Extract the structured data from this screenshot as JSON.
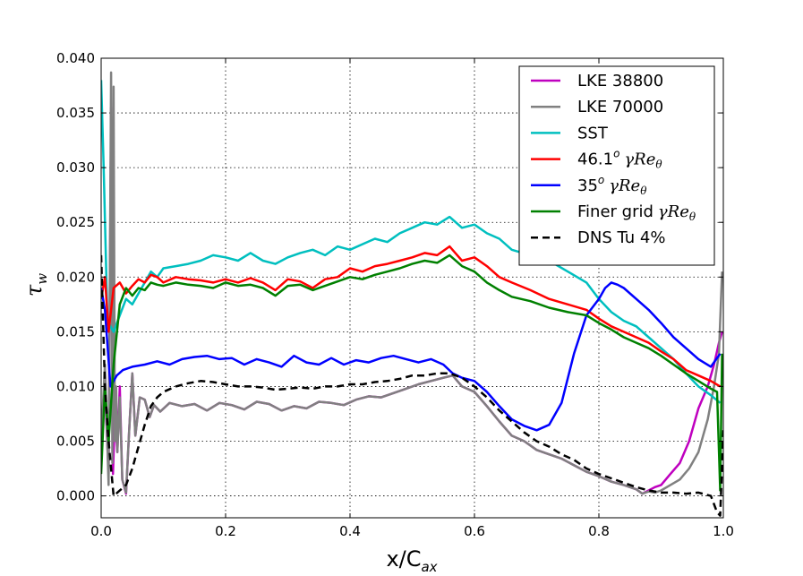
{
  "chart_data": {
    "type": "line",
    "xlabel_main": "x/C",
    "xlabel_sub": "ax",
    "ylabel_main": "τ",
    "ylabel_sub": "w",
    "xlim": [
      0.0,
      1.0
    ],
    "ylim": [
      -0.002,
      0.04
    ],
    "xticks": [
      0.0,
      0.2,
      0.4,
      0.6,
      0.8,
      1.0
    ],
    "xtick_labels": [
      "0.0",
      "0.2",
      "0.4",
      "0.6",
      "0.8",
      "1.0"
    ],
    "yticks": [
      0.0,
      0.005,
      0.01,
      0.015,
      0.02,
      0.025,
      0.03,
      0.035,
      0.04
    ],
    "ytick_labels": [
      "0.000",
      "0.005",
      "0.010",
      "0.015",
      "0.020",
      "0.025",
      "0.030",
      "0.035",
      "0.040"
    ],
    "grid": true,
    "legend_position": "top-right",
    "series": [
      {
        "name": "LKE 38800",
        "legend_main": "LKE 38800",
        "legend_sup": "",
        "legend_math": "",
        "color": "#bf00bf",
        "dash": "solid",
        "x": [
          0.0,
          0.006,
          0.012,
          0.016,
          0.019,
          0.022,
          0.026,
          0.03,
          0.034,
          0.04,
          0.045,
          0.05,
          0.055,
          0.062,
          0.07,
          0.078,
          0.085,
          0.095,
          0.11,
          0.13,
          0.15,
          0.17,
          0.19,
          0.21,
          0.23,
          0.25,
          0.27,
          0.29,
          0.31,
          0.33,
          0.35,
          0.37,
          0.39,
          0.41,
          0.43,
          0.45,
          0.47,
          0.49,
          0.51,
          0.53,
          0.55,
          0.565,
          0.58,
          0.6,
          0.62,
          0.64,
          0.66,
          0.68,
          0.7,
          0.72,
          0.74,
          0.76,
          0.78,
          0.8,
          0.82,
          0.84,
          0.86,
          0.87,
          0.88,
          0.89,
          0.9,
          0.915,
          0.93,
          0.945,
          0.96,
          0.975,
          0.985,
          0.993,
          0.998
        ],
        "y": [
          0.004,
          0.01,
          0.002,
          0.0355,
          0.002,
          0.0075,
          0.004,
          0.01,
          0.0015,
          0.0002,
          0.006,
          0.0112,
          0.0055,
          0.009,
          0.0088,
          0.0072,
          0.0083,
          0.0077,
          0.0085,
          0.0082,
          0.0084,
          0.0078,
          0.0085,
          0.0083,
          0.0079,
          0.0086,
          0.0084,
          0.0078,
          0.0082,
          0.008,
          0.0086,
          0.0085,
          0.0083,
          0.0088,
          0.0091,
          0.009,
          0.0094,
          0.0098,
          0.0102,
          0.0105,
          0.0108,
          0.011,
          0.01,
          0.0095,
          0.0082,
          0.0068,
          0.0055,
          0.005,
          0.0042,
          0.0038,
          0.0034,
          0.0028,
          0.0022,
          0.0018,
          0.0013,
          0.001,
          0.0006,
          0.0002,
          0.0005,
          0.0008,
          0.001,
          0.002,
          0.003,
          0.005,
          0.008,
          0.01,
          0.012,
          0.014,
          0.015
        ]
      },
      {
        "name": "LKE 70000",
        "legend_main": "LKE 70000",
        "legend_sup": "",
        "legend_math": "",
        "color": "#808080",
        "dash": "solid",
        "x": [
          0.0,
          0.006,
          0.012,
          0.016,
          0.018,
          0.02,
          0.022,
          0.024,
          0.026,
          0.03,
          0.034,
          0.04,
          0.045,
          0.05,
          0.055,
          0.062,
          0.07,
          0.078,
          0.085,
          0.095,
          0.11,
          0.13,
          0.15,
          0.17,
          0.19,
          0.21,
          0.23,
          0.25,
          0.27,
          0.29,
          0.31,
          0.33,
          0.35,
          0.37,
          0.39,
          0.41,
          0.43,
          0.45,
          0.47,
          0.49,
          0.51,
          0.53,
          0.55,
          0.565,
          0.58,
          0.6,
          0.62,
          0.64,
          0.66,
          0.68,
          0.7,
          0.72,
          0.74,
          0.76,
          0.78,
          0.8,
          0.82,
          0.84,
          0.86,
          0.87,
          0.88,
          0.89,
          0.9,
          0.915,
          0.93,
          0.945,
          0.96,
          0.975,
          0.985,
          0.993,
          0.998
        ],
        "y": [
          0.005,
          0.012,
          0.001,
          0.0387,
          0.003,
          0.0374,
          0.005,
          0.01,
          0.004,
          0.009,
          0.0015,
          0.0003,
          0.006,
          0.0112,
          0.0055,
          0.009,
          0.0088,
          0.0072,
          0.0083,
          0.0077,
          0.0085,
          0.0082,
          0.0084,
          0.0078,
          0.0085,
          0.0083,
          0.0079,
          0.0086,
          0.0084,
          0.0078,
          0.0082,
          0.008,
          0.0086,
          0.0085,
          0.0083,
          0.0088,
          0.0091,
          0.009,
          0.0094,
          0.0098,
          0.0102,
          0.0105,
          0.0108,
          0.011,
          0.01,
          0.0095,
          0.0082,
          0.0068,
          0.0055,
          0.005,
          0.0042,
          0.0038,
          0.0034,
          0.0028,
          0.0022,
          0.0018,
          0.0013,
          0.001,
          0.0006,
          0.0002,
          0.0004,
          0.0003,
          0.0005,
          0.001,
          0.0015,
          0.0025,
          0.004,
          0.007,
          0.01,
          0.013,
          0.0205
        ]
      },
      {
        "name": "SST",
        "legend_main": "SST",
        "legend_sup": "",
        "legend_math": "",
        "color": "#00bfbf",
        "dash": "solid",
        "x": [
          0.0,
          0.004,
          0.01,
          0.02,
          0.03,
          0.04,
          0.05,
          0.06,
          0.07,
          0.08,
          0.09,
          0.1,
          0.12,
          0.14,
          0.16,
          0.18,
          0.2,
          0.22,
          0.24,
          0.26,
          0.28,
          0.3,
          0.32,
          0.34,
          0.36,
          0.38,
          0.4,
          0.42,
          0.44,
          0.46,
          0.48,
          0.5,
          0.52,
          0.54,
          0.56,
          0.58,
          0.6,
          0.62,
          0.64,
          0.66,
          0.69,
          0.72,
          0.75,
          0.78,
          0.8,
          0.82,
          0.84,
          0.86,
          0.88,
          0.9,
          0.92,
          0.94,
          0.96,
          0.98,
          0.995
        ],
        "y": [
          0.038,
          0.03,
          0.016,
          0.015,
          0.0165,
          0.018,
          0.0175,
          0.0185,
          0.0195,
          0.0205,
          0.02,
          0.0208,
          0.021,
          0.0212,
          0.0215,
          0.022,
          0.0218,
          0.0215,
          0.0222,
          0.0215,
          0.0212,
          0.0218,
          0.0222,
          0.0225,
          0.022,
          0.0228,
          0.0225,
          0.023,
          0.0235,
          0.0232,
          0.024,
          0.0245,
          0.025,
          0.0248,
          0.0255,
          0.0245,
          0.0248,
          0.024,
          0.0235,
          0.0225,
          0.022,
          0.0215,
          0.0205,
          0.0195,
          0.018,
          0.0168,
          0.016,
          0.0155,
          0.0145,
          0.0135,
          0.0125,
          0.0112,
          0.01,
          0.0092,
          0.0085
        ]
      },
      {
        "name": "46.1 γReθ",
        "legend_main": "46.1",
        "legend_sup": "o",
        "legend_math": "γRe",
        "color": "#ff0000",
        "dash": "solid",
        "x": [
          0.0,
          0.006,
          0.012,
          0.02,
          0.03,
          0.04,
          0.05,
          0.06,
          0.07,
          0.08,
          0.09,
          0.1,
          0.12,
          0.14,
          0.16,
          0.18,
          0.2,
          0.22,
          0.24,
          0.26,
          0.28,
          0.3,
          0.32,
          0.34,
          0.36,
          0.38,
          0.4,
          0.42,
          0.44,
          0.46,
          0.48,
          0.5,
          0.52,
          0.54,
          0.56,
          0.58,
          0.6,
          0.62,
          0.64,
          0.66,
          0.69,
          0.72,
          0.75,
          0.78,
          0.8,
          0.82,
          0.84,
          0.86,
          0.88,
          0.9,
          0.92,
          0.94,
          0.96,
          0.98,
          0.995
        ],
        "y": [
          0.018,
          0.02,
          0.015,
          0.019,
          0.0195,
          0.0185,
          0.0192,
          0.0198,
          0.0195,
          0.0202,
          0.02,
          0.0195,
          0.02,
          0.0198,
          0.0197,
          0.0195,
          0.0198,
          0.0195,
          0.0199,
          0.0195,
          0.0188,
          0.0198,
          0.0196,
          0.019,
          0.0198,
          0.02,
          0.0208,
          0.0205,
          0.021,
          0.0212,
          0.0215,
          0.0218,
          0.0222,
          0.022,
          0.0228,
          0.0215,
          0.0218,
          0.021,
          0.02,
          0.0195,
          0.0188,
          0.018,
          0.0175,
          0.017,
          0.0162,
          0.0155,
          0.015,
          0.0145,
          0.014,
          0.0132,
          0.0125,
          0.0115,
          0.011,
          0.0105,
          0.01
        ]
      },
      {
        "name": "35 γReθ",
        "legend_main": "35",
        "legend_sup": "o",
        "legend_math": "γRe",
        "color": "#0000ff",
        "dash": "solid",
        "x": [
          0.0,
          0.006,
          0.015,
          0.025,
          0.035,
          0.05,
          0.07,
          0.09,
          0.11,
          0.13,
          0.15,
          0.17,
          0.19,
          0.21,
          0.23,
          0.25,
          0.27,
          0.29,
          0.31,
          0.33,
          0.35,
          0.37,
          0.39,
          0.41,
          0.43,
          0.45,
          0.47,
          0.49,
          0.51,
          0.53,
          0.55,
          0.565,
          0.58,
          0.6,
          0.62,
          0.64,
          0.66,
          0.68,
          0.7,
          0.72,
          0.74,
          0.76,
          0.78,
          0.8,
          0.81,
          0.82,
          0.83,
          0.84,
          0.86,
          0.88,
          0.9,
          0.92,
          0.94,
          0.96,
          0.98,
          0.995
        ],
        "y": [
          0.019,
          0.017,
          0.01,
          0.011,
          0.0115,
          0.0118,
          0.012,
          0.0123,
          0.012,
          0.0125,
          0.0127,
          0.0128,
          0.0125,
          0.0126,
          0.012,
          0.0125,
          0.0122,
          0.0118,
          0.0128,
          0.0122,
          0.012,
          0.0126,
          0.012,
          0.0124,
          0.0122,
          0.0126,
          0.0128,
          0.0125,
          0.0122,
          0.0125,
          0.012,
          0.0112,
          0.0108,
          0.0105,
          0.0095,
          0.0082,
          0.007,
          0.0064,
          0.006,
          0.0065,
          0.0085,
          0.013,
          0.0165,
          0.018,
          0.019,
          0.0195,
          0.0193,
          0.019,
          0.018,
          0.017,
          0.0158,
          0.0145,
          0.0135,
          0.0125,
          0.0118,
          0.013
        ]
      },
      {
        "name": "Finer grid γReθ",
        "legend_main": "Finer grid",
        "legend_sup": "",
        "legend_math": "γRe",
        "color": "#008000",
        "dash": "solid",
        "x": [
          0.0,
          0.006,
          0.012,
          0.02,
          0.03,
          0.04,
          0.05,
          0.06,
          0.07,
          0.08,
          0.09,
          0.1,
          0.12,
          0.14,
          0.16,
          0.18,
          0.2,
          0.22,
          0.24,
          0.26,
          0.28,
          0.3,
          0.32,
          0.34,
          0.36,
          0.38,
          0.4,
          0.42,
          0.44,
          0.46,
          0.48,
          0.5,
          0.52,
          0.54,
          0.56,
          0.58,
          0.6,
          0.62,
          0.64,
          0.66,
          0.69,
          0.72,
          0.75,
          0.78,
          0.8,
          0.82,
          0.84,
          0.86,
          0.88,
          0.9,
          0.92,
          0.94,
          0.96,
          0.98,
          0.99,
          0.995,
          0.998
        ],
        "y": [
          0.002,
          0.01,
          0.005,
          0.012,
          0.0175,
          0.019,
          0.0183,
          0.019,
          0.0188,
          0.0195,
          0.0193,
          0.0192,
          0.0195,
          0.0193,
          0.0192,
          0.019,
          0.0195,
          0.0192,
          0.0193,
          0.019,
          0.0183,
          0.0192,
          0.0193,
          0.0188,
          0.0192,
          0.0196,
          0.02,
          0.0198,
          0.0202,
          0.0205,
          0.0208,
          0.0212,
          0.0215,
          0.0213,
          0.022,
          0.021,
          0.0205,
          0.0195,
          0.0188,
          0.0182,
          0.0178,
          0.0172,
          0.0168,
          0.0165,
          0.0158,
          0.0152,
          0.0145,
          0.014,
          0.0135,
          0.0128,
          0.012,
          0.0112,
          0.0105,
          0.0098,
          0.0095,
          0.0005,
          0.013
        ]
      },
      {
        "name": "DNS Tu 4%",
        "legend_main": "DNS Tu 4%",
        "legend_sup": "",
        "legend_math": "",
        "color": "#000000",
        "dash": "dashed",
        "x": [
          0.0,
          0.006,
          0.012,
          0.02,
          0.03,
          0.04,
          0.05,
          0.06,
          0.07,
          0.08,
          0.09,
          0.1,
          0.12,
          0.14,
          0.16,
          0.18,
          0.2,
          0.22,
          0.24,
          0.26,
          0.28,
          0.3,
          0.32,
          0.34,
          0.36,
          0.38,
          0.4,
          0.42,
          0.44,
          0.46,
          0.48,
          0.5,
          0.52,
          0.54,
          0.56,
          0.58,
          0.6,
          0.62,
          0.64,
          0.66,
          0.68,
          0.7,
          0.72,
          0.74,
          0.76,
          0.78,
          0.8,
          0.82,
          0.84,
          0.86,
          0.88,
          0.9,
          0.92,
          0.94,
          0.96,
          0.98,
          0.99,
          0.995,
          1.0
        ],
        "y": [
          0.022,
          0.01,
          0.005,
          0.0,
          0.0005,
          0.001,
          0.0025,
          0.0045,
          0.0065,
          0.0082,
          0.009,
          0.0095,
          0.01,
          0.0103,
          0.0105,
          0.0104,
          0.0102,
          0.01,
          0.01,
          0.0099,
          0.0097,
          0.0098,
          0.0099,
          0.0098,
          0.01,
          0.01,
          0.0102,
          0.0102,
          0.0104,
          0.0105,
          0.0107,
          0.011,
          0.011,
          0.0112,
          0.0112,
          0.0108,
          0.01,
          0.009,
          0.0078,
          0.0068,
          0.0058,
          0.005,
          0.0045,
          0.0038,
          0.0033,
          0.0025,
          0.002,
          0.0016,
          0.0012,
          0.0008,
          0.0005,
          0.0003,
          0.0003,
          0.0002,
          0.0003,
          0.0,
          -0.0015,
          -0.0018,
          0.006
        ]
      }
    ]
  }
}
